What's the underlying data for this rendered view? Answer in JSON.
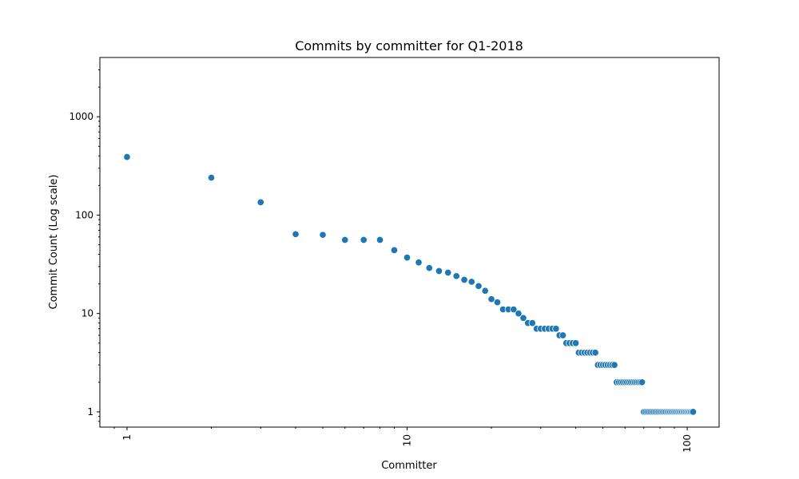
{
  "chart_data": {
    "type": "scatter",
    "title": "Commits by committer for Q1-2018",
    "xlabel": "Committer",
    "ylabel": "Commit Count (Log scale)",
    "xscale": "log",
    "yscale": "log",
    "xlim": [
      0.8,
      130
    ],
    "ylim": [
      0.7,
      4000
    ],
    "grid": false,
    "color": "#1f77b4",
    "x_ticks": [
      {
        "value": 1,
        "label": "1"
      },
      {
        "value": 10,
        "label": "10"
      },
      {
        "value": 100,
        "label": "100"
      }
    ],
    "y_ticks": [
      {
        "value": 1,
        "label": "1"
      },
      {
        "value": 10,
        "label": "10"
      },
      {
        "value": 100,
        "label": "100"
      },
      {
        "value": 1000,
        "label": "1000"
      }
    ],
    "x": [
      1,
      2,
      3,
      4,
      5,
      6,
      7,
      8,
      9,
      10,
      11,
      12,
      13,
      14,
      15,
      16,
      17,
      18,
      19,
      20,
      21,
      22,
      23,
      24,
      25,
      26,
      27,
      28,
      29,
      30,
      31,
      32,
      33,
      34,
      35,
      36,
      37,
      38,
      39,
      40,
      41,
      42,
      43,
      44,
      45,
      46,
      47,
      48,
      49,
      50,
      51,
      52,
      53,
      54,
      55,
      56,
      57,
      58,
      59,
      60,
      61,
      62,
      63,
      64,
      65,
      66,
      67,
      68,
      69,
      70,
      71,
      72,
      73,
      74,
      75,
      76,
      77,
      78,
      79,
      80,
      81,
      82,
      83,
      84,
      85,
      86,
      87,
      88,
      89,
      90,
      91,
      92,
      93,
      94,
      95,
      96,
      97,
      98,
      99,
      100,
      101,
      102,
      103,
      104,
      105
    ],
    "y": [
      390,
      240,
      135,
      64,
      63,
      56,
      56,
      56,
      44,
      37,
      33,
      29,
      27,
      26,
      24,
      22,
      21,
      19,
      17,
      14,
      13,
      11,
      11,
      11,
      10,
      9,
      8,
      8,
      7,
      7,
      7,
      7,
      7,
      7,
      6,
      6,
      5,
      5,
      5,
      5,
      4,
      4,
      4,
      4,
      4,
      4,
      4,
      3,
      3,
      3,
      3,
      3,
      3,
      3,
      3,
      2,
      2,
      2,
      2,
      2,
      2,
      2,
      2,
      2,
      2,
      2,
      2,
      2,
      2,
      1,
      1,
      1,
      1,
      1,
      1,
      1,
      1,
      1,
      1,
      1,
      1,
      1,
      1,
      1,
      1,
      1,
      1,
      1,
      1,
      1,
      1,
      1,
      1,
      1,
      1,
      1,
      1,
      1,
      1,
      1,
      1,
      1,
      1,
      1,
      1
    ]
  }
}
